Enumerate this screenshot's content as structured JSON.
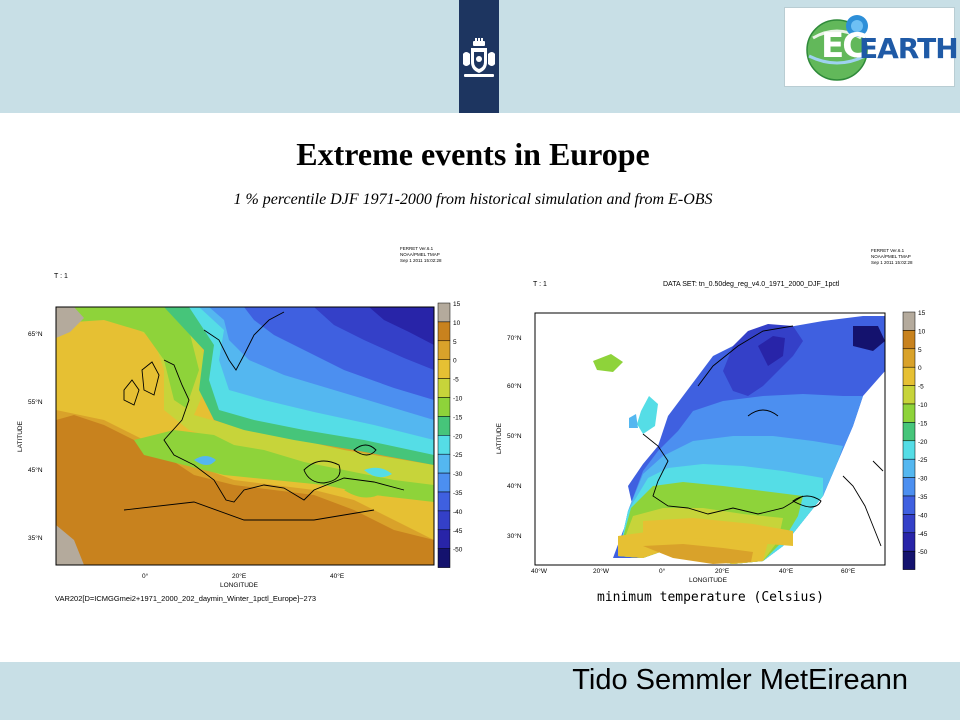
{
  "slide": {
    "title": "Extreme events in Europe",
    "subtitle": "1 % percentile DJF 1971-2000 from historical simulation and from E-OBS",
    "author": "Tido Semmler MetEireann"
  },
  "logo": {
    "ec": "EC",
    "earth": "EARTH"
  },
  "colorbar": {
    "ticks": [
      "15",
      "10",
      "5",
      "0",
      "-5",
      "-10",
      "-15",
      "-20",
      "-25",
      "-30",
      "-35",
      "-40",
      "-45",
      "-50"
    ],
    "colors": [
      "#b4aa9c",
      "#c8821e",
      "#d9a22a",
      "#e6c033",
      "#c7d43a",
      "#8ed33a",
      "#46c57a",
      "#55dde6",
      "#54b7f0",
      "#4c8ff0",
      "#3f60e0",
      "#3440c8",
      "#2824a8",
      "#14126e"
    ]
  },
  "map_left": {
    "header_label": "T : 1",
    "ferret_stamp": [
      "FERRET Ver.6.1",
      "NOAA/PMEL TMAP",
      "Sep 1 2011 15:02:28"
    ],
    "latitude_title": "LATITUDE",
    "longitude_title": "LONGITUDE",
    "lat_ticks": [
      "65°N",
      "55°N",
      "45°N",
      "35°N"
    ],
    "lon_ticks": [
      "0°",
      "20°E",
      "40°E"
    ],
    "caption": "VAR202[D=ICMGGmei2+1971_2000_202_daymin_Winter_1pctl_Europe]−273"
  },
  "map_right": {
    "header_label": "T : 1",
    "dataset": "DATA SET: tn_0.50deg_reg_v4.0_1971_2000_DJF_1pctl",
    "ferret_stamp": [
      "FERRET Ver.6.1",
      "NOAA/PMEL TMAP",
      "Sep 1 2011 15:02:28"
    ],
    "latitude_title": "LATITUDE",
    "longitude_title": "LONGITUDE",
    "lat_ticks": [
      "70°N",
      "60°N",
      "50°N",
      "40°N",
      "30°N"
    ],
    "lon_ticks": [
      "40°W",
      "20°W",
      "0°",
      "20°E",
      "40°E",
      "60°E"
    ],
    "caption": "minimum temperature (Celsius)"
  }
}
